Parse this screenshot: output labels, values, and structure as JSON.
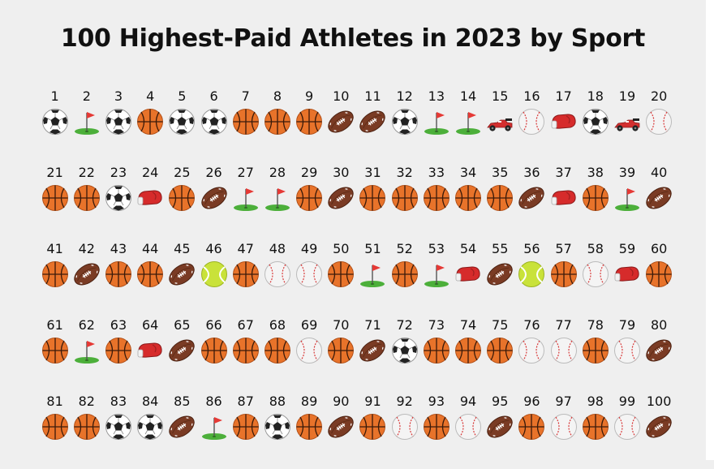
{
  "title": "100 Highest-Paid Athletes in 2023 by Sport",
  "colors": {
    "background": "#efefef",
    "basketball": "#e8732a",
    "football": "#7a3b24",
    "soccer": "#ffffff",
    "baseball": "#f4f4f4",
    "tennis": "#c9e23a",
    "boxing": "#d62b2b",
    "golf_flag": "#e53935",
    "golf_green": "#4caf3a",
    "racing": "#d32f2f"
  },
  "athletes": [
    {
      "rank": "1",
      "sport": "soccer"
    },
    {
      "rank": "2",
      "sport": "golf"
    },
    {
      "rank": "3",
      "sport": "soccer"
    },
    {
      "rank": "4",
      "sport": "basketball"
    },
    {
      "rank": "5",
      "sport": "soccer"
    },
    {
      "rank": "6",
      "sport": "soccer"
    },
    {
      "rank": "7",
      "sport": "basketball"
    },
    {
      "rank": "8",
      "sport": "basketball"
    },
    {
      "rank": "9",
      "sport": "basketball"
    },
    {
      "rank": "10",
      "sport": "football"
    },
    {
      "rank": "11",
      "sport": "football"
    },
    {
      "rank": "12",
      "sport": "soccer"
    },
    {
      "rank": "13",
      "sport": "golf"
    },
    {
      "rank": "14",
      "sport": "golf"
    },
    {
      "rank": "15",
      "sport": "racing"
    },
    {
      "rank": "16",
      "sport": "baseball"
    },
    {
      "rank": "17",
      "sport": "boxing"
    },
    {
      "rank": "18",
      "sport": "soccer"
    },
    {
      "rank": "19",
      "sport": "racing"
    },
    {
      "rank": "20",
      "sport": "baseball"
    },
    {
      "rank": "21",
      "sport": "basketball"
    },
    {
      "rank": "22",
      "sport": "basketball"
    },
    {
      "rank": "23",
      "sport": "soccer"
    },
    {
      "rank": "24",
      "sport": "boxing"
    },
    {
      "rank": "25",
      "sport": "basketball"
    },
    {
      "rank": "26",
      "sport": "football"
    },
    {
      "rank": "27",
      "sport": "golf"
    },
    {
      "rank": "28",
      "sport": "golf"
    },
    {
      "rank": "29",
      "sport": "basketball"
    },
    {
      "rank": "30",
      "sport": "football"
    },
    {
      "rank": "31",
      "sport": "basketball"
    },
    {
      "rank": "32",
      "sport": "basketball"
    },
    {
      "rank": "33",
      "sport": "basketball"
    },
    {
      "rank": "34",
      "sport": "basketball"
    },
    {
      "rank": "35",
      "sport": "basketball"
    },
    {
      "rank": "36",
      "sport": "football"
    },
    {
      "rank": "37",
      "sport": "boxing"
    },
    {
      "rank": "38",
      "sport": "basketball"
    },
    {
      "rank": "39",
      "sport": "golf"
    },
    {
      "rank": "40",
      "sport": "football"
    },
    {
      "rank": "41",
      "sport": "basketball"
    },
    {
      "rank": "42",
      "sport": "football"
    },
    {
      "rank": "43",
      "sport": "basketball"
    },
    {
      "rank": "44",
      "sport": "basketball"
    },
    {
      "rank": "45",
      "sport": "football"
    },
    {
      "rank": "46",
      "sport": "tennis"
    },
    {
      "rank": "47",
      "sport": "basketball"
    },
    {
      "rank": "48",
      "sport": "baseball"
    },
    {
      "rank": "49",
      "sport": "baseball"
    },
    {
      "rank": "50",
      "sport": "basketball"
    },
    {
      "rank": "51",
      "sport": "golf"
    },
    {
      "rank": "52",
      "sport": "basketball"
    },
    {
      "rank": "53",
      "sport": "golf"
    },
    {
      "rank": "54",
      "sport": "boxing"
    },
    {
      "rank": "55",
      "sport": "football"
    },
    {
      "rank": "56",
      "sport": "tennis"
    },
    {
      "rank": "57",
      "sport": "basketball"
    },
    {
      "rank": "58",
      "sport": "baseball"
    },
    {
      "rank": "59",
      "sport": "boxing"
    },
    {
      "rank": "60",
      "sport": "basketball"
    },
    {
      "rank": "61",
      "sport": "basketball"
    },
    {
      "rank": "62",
      "sport": "golf"
    },
    {
      "rank": "63",
      "sport": "basketball"
    },
    {
      "rank": "64",
      "sport": "boxing"
    },
    {
      "rank": "65",
      "sport": "football"
    },
    {
      "rank": "66",
      "sport": "basketball"
    },
    {
      "rank": "67",
      "sport": "basketball"
    },
    {
      "rank": "68",
      "sport": "basketball"
    },
    {
      "rank": "69",
      "sport": "baseball"
    },
    {
      "rank": "70",
      "sport": "basketball"
    },
    {
      "rank": "71",
      "sport": "football"
    },
    {
      "rank": "72",
      "sport": "soccer"
    },
    {
      "rank": "73",
      "sport": "basketball"
    },
    {
      "rank": "74",
      "sport": "basketball"
    },
    {
      "rank": "75",
      "sport": "basketball"
    },
    {
      "rank": "76",
      "sport": "baseball"
    },
    {
      "rank": "77",
      "sport": "baseball"
    },
    {
      "rank": "78",
      "sport": "basketball"
    },
    {
      "rank": "79",
      "sport": "baseball"
    },
    {
      "rank": "80",
      "sport": "football"
    },
    {
      "rank": "81",
      "sport": "basketball"
    },
    {
      "rank": "82",
      "sport": "basketball"
    },
    {
      "rank": "83",
      "sport": "soccer"
    },
    {
      "rank": "84",
      "sport": "soccer"
    },
    {
      "rank": "85",
      "sport": "football"
    },
    {
      "rank": "86",
      "sport": "golf"
    },
    {
      "rank": "87",
      "sport": "basketball"
    },
    {
      "rank": "88",
      "sport": "soccer"
    },
    {
      "rank": "89",
      "sport": "basketball"
    },
    {
      "rank": "90",
      "sport": "football"
    },
    {
      "rank": "91",
      "sport": "basketball"
    },
    {
      "rank": "92",
      "sport": "baseball"
    },
    {
      "rank": "93",
      "sport": "basketball"
    },
    {
      "rank": "94",
      "sport": "baseball"
    },
    {
      "rank": "95",
      "sport": "football"
    },
    {
      "rank": "96",
      "sport": "basketball"
    },
    {
      "rank": "97",
      "sport": "baseball"
    },
    {
      "rank": "98",
      "sport": "basketball"
    },
    {
      "rank": "99",
      "sport": "baseball"
    },
    {
      "rank": "100",
      "sport": "football"
    }
  ]
}
